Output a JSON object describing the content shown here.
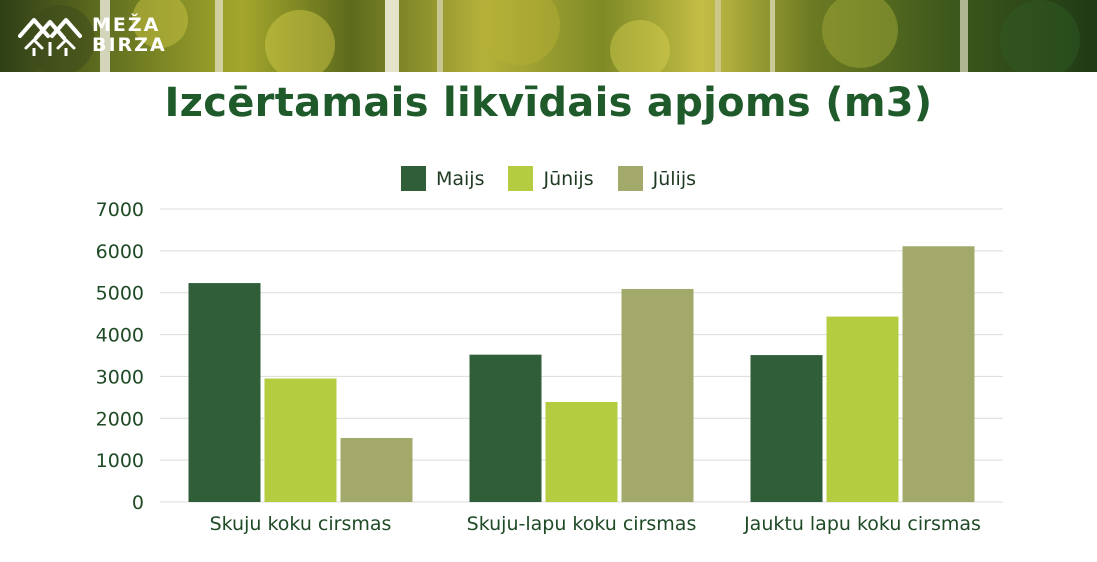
{
  "brand": {
    "line1": "MEŽA",
    "line2": "BIRZA"
  },
  "colors": {
    "title": "#1f5a2a",
    "series": [
      "#2f5e38",
      "#b4cd40",
      "#a3a86b"
    ],
    "grid": "#dcdcdc"
  },
  "chart_data": {
    "type": "bar",
    "title": "Izcērtamais likvīdais apjoms (m3)",
    "xlabel": "",
    "ylabel": "",
    "categories": [
      "Skuju koku cirsmas",
      "Skuju-lapu koku cirsmas",
      "Jauktu lapu koku cirsmas"
    ],
    "series": [
      {
        "name": "Maijs",
        "values": [
          5230,
          3520,
          3510
        ]
      },
      {
        "name": "Jūnijs",
        "values": [
          2950,
          2390,
          4430
        ]
      },
      {
        "name": "Jūlijs",
        "values": [
          1530,
          5090,
          6110
        ]
      }
    ],
    "ylim": [
      0,
      7000
    ],
    "yticks": [
      0,
      1000,
      2000,
      3000,
      4000,
      5000,
      6000,
      7000
    ],
    "grid": true,
    "legend_position": "top"
  }
}
